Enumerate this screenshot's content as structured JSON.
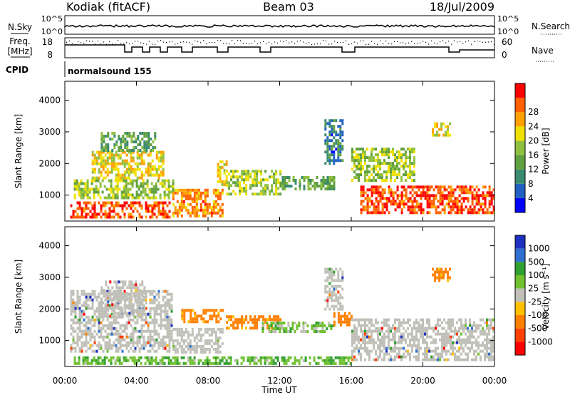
{
  "header": {
    "station": "Kodiak (fitACF)",
    "beam": "Beam 03",
    "date": "18/Jul/2009"
  },
  "status_panels": {
    "nsky_label": "N.Sky",
    "nsky_ticks": [
      "10^5",
      "10^0"
    ],
    "nsearch_label": "N.Search",
    "nsearch_ticks": [
      "10^5",
      "10^0"
    ],
    "freq_label_line1": "Freq.",
    "freq_label_line2": "[MHz]",
    "freq_ticks": [
      "18",
      "8"
    ],
    "nave_label": "Nave",
    "nave_ticks": [
      "60",
      "0"
    ],
    "cpid_label": "CPID",
    "cpid_value": "normalsound 155"
  },
  "colors": {
    "power_scale": [
      "#0000ff",
      "#2060c0",
      "#3a8a70",
      "#60a040",
      "#90c040",
      "#f0e000",
      "#ffa000",
      "#ff6000",
      "#ff0000"
    ],
    "velocity_scale": [
      "#2030c0",
      "#3070d0",
      "#30a030",
      "#70c030",
      "#c0c0b8",
      "#ffc000",
      "#ff8000",
      "#ff4000",
      "#ff0000"
    ],
    "ground_scatter": "#c0c0b8"
  },
  "chart_data": [
    {
      "type": "heatmap",
      "name": "power",
      "ylabel": "Slant Range [km]",
      "xlabel": "",
      "x_ticks": [
        "00:00",
        "04:00",
        "08:00",
        "12:00",
        "16:00",
        "20:00",
        "00:00"
      ],
      "y_ticks": [
        1000,
        2000,
        3000,
        4000
      ],
      "xlim": [
        0,
        24
      ],
      "ylim": [
        180,
        4600
      ],
      "colorbar": {
        "label": "Power [dB]",
        "ticks": [
          "4",
          "8",
          "12",
          "16",
          "20",
          "24",
          "28"
        ],
        "range": [
          0,
          32
        ]
      },
      "regions": [
        {
          "t": [
            0.3,
            5.8
          ],
          "r": [
            300,
            800
          ],
          "level": 28
        },
        {
          "t": [
            0.5,
            6.0
          ],
          "r": [
            900,
            1500
          ],
          "level": 16
        },
        {
          "t": [
            1.5,
            5.5
          ],
          "r": [
            1500,
            2400
          ],
          "level": 20
        },
        {
          "t": [
            2.0,
            5.0
          ],
          "r": [
            2400,
            3000
          ],
          "level": 12
        },
        {
          "t": [
            6.0,
            8.8
          ],
          "r": [
            300,
            1200
          ],
          "level": 24
        },
        {
          "t": [
            8.5,
            9.0
          ],
          "r": [
            1300,
            2100
          ],
          "level": 20
        },
        {
          "t": [
            9.0,
            12.0
          ],
          "r": [
            1000,
            1800
          ],
          "level": 16
        },
        {
          "t": [
            12.0,
            15.0
          ],
          "r": [
            1200,
            1600
          ],
          "level": 12
        },
        {
          "t": [
            14.5,
            15.5
          ],
          "r": [
            2000,
            3400
          ],
          "level": 8
        },
        {
          "t": [
            16.0,
            19.5
          ],
          "r": [
            1500,
            2500
          ],
          "level": 16
        },
        {
          "t": [
            16.5,
            24.0
          ],
          "r": [
            400,
            1300
          ],
          "level": 28
        },
        {
          "t": [
            20.5,
            21.5
          ],
          "r": [
            2900,
            3300
          ],
          "level": 20
        }
      ]
    },
    {
      "type": "heatmap",
      "name": "velocity",
      "ylabel": "Slant Range [km]",
      "xlabel": "Time UT",
      "x_ticks": [
        "00:00",
        "04:00",
        "08:00",
        "12:00",
        "16:00",
        "20:00",
        "00:00"
      ],
      "y_ticks": [
        1000,
        2000,
        3000,
        4000
      ],
      "xlim": [
        0,
        24
      ],
      "ylim": [
        180,
        4600
      ],
      "colorbar": {
        "label": "Velocity [m s⁻¹]",
        "ticks": [
          "1000",
          "500",
          "100",
          "25",
          "-25",
          "-100",
          "-500",
          "-1000"
        ],
        "range": [
          -1000,
          1000
        ]
      },
      "regions": [
        {
          "t": [
            0.3,
            6.0
          ],
          "r": [
            700,
            2600
          ],
          "level": 0
        },
        {
          "t": [
            2.0,
            4.5
          ],
          "r": [
            1800,
            2900
          ],
          "level": 0
        },
        {
          "t": [
            6.0,
            8.8
          ],
          "r": [
            600,
            1400
          ],
          "level": 0
        },
        {
          "t": [
            6.5,
            8.8
          ],
          "r": [
            1600,
            2000
          ],
          "level": -150
        },
        {
          "t": [
            9.0,
            12.0
          ],
          "r": [
            1400,
            1800
          ],
          "level": -150
        },
        {
          "t": [
            11.0,
            15.0
          ],
          "r": [
            1300,
            1600
          ],
          "level": 60
        },
        {
          "t": [
            14.5,
            15.5
          ],
          "r": [
            2000,
            3300
          ],
          "level": 0
        },
        {
          "t": [
            15.0,
            16.0
          ],
          "r": [
            1500,
            1900
          ],
          "level": -200
        },
        {
          "t": [
            16.0,
            24.0
          ],
          "r": [
            400,
            1700
          ],
          "level": 0
        },
        {
          "t": [
            0.5,
            16.0
          ],
          "r": [
            250,
            500
          ],
          "level": 80
        },
        {
          "t": [
            20.5,
            21.5
          ],
          "r": [
            2900,
            3300
          ],
          "level": -150
        }
      ]
    }
  ]
}
